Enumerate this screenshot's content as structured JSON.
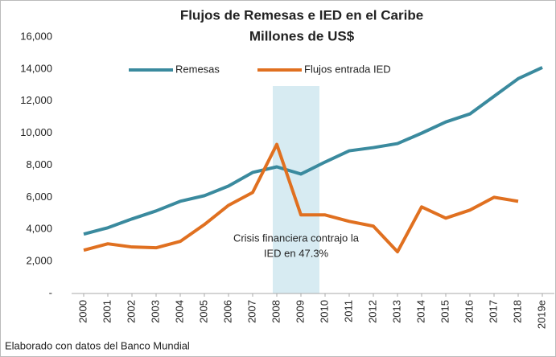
{
  "chart_data": {
    "type": "line",
    "title": "Flujos de Remesas e IED en el Caribe",
    "subtitle": "Millones de US$",
    "categories": [
      "2000",
      "2001",
      "2002",
      "2003",
      "2004",
      "2005",
      "2006",
      "2007",
      "2008",
      "2009",
      "2010",
      "2011",
      "2012",
      "2013",
      "2014",
      "2015",
      "2016",
      "2017",
      "2018",
      "2019e"
    ],
    "series": [
      {
        "name": "Remesas",
        "color": "#3a8a9e",
        "values": [
          3700,
          4100,
          4650,
          5150,
          5750,
          6100,
          6700,
          7550,
          7900,
          7450,
          8200,
          8900,
          9100,
          9350,
          10000,
          10700,
          11200,
          12300,
          13400,
          14100
        ]
      },
      {
        "name": "Flujos entrada IED",
        "color": "#e07020",
        "values": [
          2700,
          3100,
          2900,
          2850,
          3250,
          4300,
          5500,
          6300,
          9300,
          4900,
          4900,
          4500,
          4200,
          2600,
          5400,
          4700,
          5200,
          6000,
          5750,
          null
        ]
      }
    ],
    "ylim": [
      0,
      16000
    ],
    "yticks": [
      {
        "value": 0,
        "label": "-"
      },
      {
        "value": 2000,
        "label": "2,000"
      },
      {
        "value": 4000,
        "label": "4,000"
      },
      {
        "value": 6000,
        "label": "6,000"
      },
      {
        "value": 8000,
        "label": "8,000"
      },
      {
        "value": 10000,
        "label": "10,000"
      },
      {
        "value": 12000,
        "label": "12,000"
      },
      {
        "value": 14000,
        "label": "14,000"
      },
      {
        "value": 16000,
        "label": "16,000"
      }
    ],
    "grid": false,
    "legend": "top",
    "annotation": [
      "Crisis financiera contrajo la",
      "IED en 47.3%"
    ],
    "source": "Elaborado con datos del Banco Mundial"
  }
}
